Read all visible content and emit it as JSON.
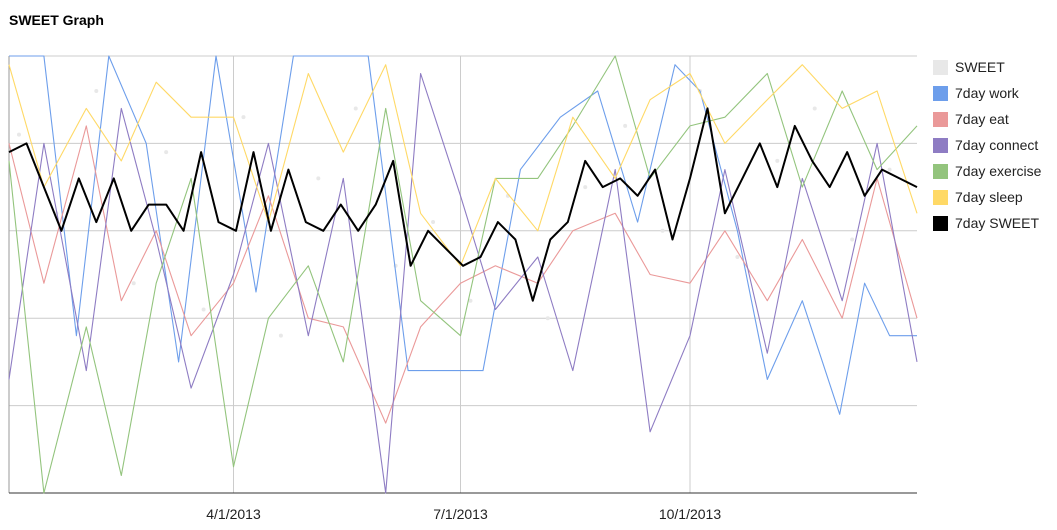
{
  "title": "SWEET Graph",
  "chart_data": {
    "type": "line",
    "title": "SWEET Graph",
    "xlabel": "",
    "ylabel": "",
    "x_range": [
      "2013-01-01",
      "2013-12-31"
    ],
    "x_ticks": [
      "4/1/2013",
      "7/1/2013",
      "10/1/2013"
    ],
    "y_range": [
      0,
      5
    ],
    "grid": true,
    "legend_position": "right",
    "series": [
      {
        "name": "SWEET",
        "color": "#e8e8e8",
        "style": "points",
        "points": [
          [
            "2013-01-05",
            4.1
          ],
          [
            "2013-01-20",
            3.2
          ],
          [
            "2013-02-05",
            4.6
          ],
          [
            "2013-02-20",
            2.4
          ],
          [
            "2013-03-05",
            3.9
          ],
          [
            "2013-03-20",
            2.1
          ],
          [
            "2013-04-05",
            4.3
          ],
          [
            "2013-04-20",
            1.8
          ],
          [
            "2013-05-05",
            3.6
          ],
          [
            "2013-05-20",
            4.4
          ],
          [
            "2013-06-05",
            2.6
          ],
          [
            "2013-06-20",
            3.1
          ],
          [
            "2013-07-05",
            2.2
          ],
          [
            "2013-07-20",
            3.4
          ],
          [
            "2013-08-05",
            2.0
          ],
          [
            "2013-08-20",
            3.5
          ],
          [
            "2013-09-05",
            4.2
          ],
          [
            "2013-09-20",
            3.0
          ],
          [
            "2013-10-05",
            4.6
          ],
          [
            "2013-10-20",
            2.7
          ],
          [
            "2013-11-05",
            3.8
          ],
          [
            "2013-11-20",
            4.4
          ],
          [
            "2013-12-05",
            2.9
          ],
          [
            "2013-12-20",
            3.7
          ]
        ]
      },
      {
        "name": "7day work",
        "color": "#6d9eeb",
        "points": [
          [
            "2013-01-01",
            5.0
          ],
          [
            "2013-01-15",
            5.0
          ],
          [
            "2013-01-28",
            1.8
          ],
          [
            "2013-02-10",
            5.0
          ],
          [
            "2013-02-25",
            4.0
          ],
          [
            "2013-03-10",
            1.5
          ],
          [
            "2013-03-25",
            5.0
          ],
          [
            "2013-04-10",
            2.3
          ],
          [
            "2013-04-25",
            5.0
          ],
          [
            "2013-05-10",
            5.0
          ],
          [
            "2013-05-25",
            5.0
          ],
          [
            "2013-06-10",
            1.4
          ],
          [
            "2013-06-25",
            1.4
          ],
          [
            "2013-07-10",
            1.4
          ],
          [
            "2013-07-25",
            3.7
          ],
          [
            "2013-08-10",
            4.3
          ],
          [
            "2013-08-25",
            4.6
          ],
          [
            "2013-09-10",
            3.1
          ],
          [
            "2013-09-25",
            4.9
          ],
          [
            "2013-10-05",
            4.6
          ],
          [
            "2013-10-20",
            3.0
          ],
          [
            "2013-11-01",
            1.3
          ],
          [
            "2013-11-15",
            2.2
          ],
          [
            "2013-11-30",
            0.9
          ],
          [
            "2013-12-10",
            2.4
          ],
          [
            "2013-12-20",
            1.8
          ],
          [
            "2013-12-31",
            1.8
          ]
        ]
      },
      {
        "name": "7day eat",
        "color": "#ea9999",
        "points": [
          [
            "2013-01-01",
            4.0
          ],
          [
            "2013-01-15",
            2.4
          ],
          [
            "2013-02-01",
            4.2
          ],
          [
            "2013-02-15",
            2.2
          ],
          [
            "2013-03-01",
            3.0
          ],
          [
            "2013-03-15",
            1.8
          ],
          [
            "2013-04-01",
            2.4
          ],
          [
            "2013-04-15",
            3.4
          ],
          [
            "2013-05-01",
            2.0
          ],
          [
            "2013-05-15",
            1.9
          ],
          [
            "2013-06-01",
            0.8
          ],
          [
            "2013-06-15",
            1.9
          ],
          [
            "2013-07-01",
            2.4
          ],
          [
            "2013-07-15",
            2.6
          ],
          [
            "2013-08-01",
            2.4
          ],
          [
            "2013-08-15",
            3.0
          ],
          [
            "2013-09-01",
            3.2
          ],
          [
            "2013-09-15",
            2.5
          ],
          [
            "2013-10-01",
            2.4
          ],
          [
            "2013-10-15",
            3.0
          ],
          [
            "2013-11-01",
            2.2
          ],
          [
            "2013-11-15",
            2.9
          ],
          [
            "2013-12-01",
            2.0
          ],
          [
            "2013-12-15",
            3.6
          ],
          [
            "2013-12-31",
            2.0
          ]
        ]
      },
      {
        "name": "7day connect",
        "color": "#8e7cc3",
        "points": [
          [
            "2013-01-01",
            1.3
          ],
          [
            "2013-01-15",
            4.0
          ],
          [
            "2013-02-01",
            1.4
          ],
          [
            "2013-02-15",
            4.4
          ],
          [
            "2013-03-01",
            2.9
          ],
          [
            "2013-03-15",
            1.2
          ],
          [
            "2013-04-01",
            2.5
          ],
          [
            "2013-04-15",
            4.0
          ],
          [
            "2013-05-01",
            1.8
          ],
          [
            "2013-05-15",
            3.6
          ],
          [
            "2013-06-01",
            0.0
          ],
          [
            "2013-06-15",
            4.8
          ],
          [
            "2013-07-01",
            3.4
          ],
          [
            "2013-07-15",
            2.1
          ],
          [
            "2013-08-01",
            2.7
          ],
          [
            "2013-08-15",
            1.4
          ],
          [
            "2013-09-01",
            3.7
          ],
          [
            "2013-09-15",
            0.7
          ],
          [
            "2013-10-01",
            1.8
          ],
          [
            "2013-10-15",
            3.7
          ],
          [
            "2013-11-01",
            1.6
          ],
          [
            "2013-11-15",
            3.6
          ],
          [
            "2013-12-01",
            2.2
          ],
          [
            "2013-12-15",
            4.0
          ],
          [
            "2013-12-31",
            1.5
          ]
        ]
      },
      {
        "name": "7day exercise",
        "color": "#93c47d",
        "points": [
          [
            "2013-01-01",
            3.8
          ],
          [
            "2013-01-15",
            0.0
          ],
          [
            "2013-02-01",
            1.9
          ],
          [
            "2013-02-15",
            0.2
          ],
          [
            "2013-03-01",
            2.4
          ],
          [
            "2013-03-15",
            3.6
          ],
          [
            "2013-04-01",
            0.3
          ],
          [
            "2013-04-15",
            2.0
          ],
          [
            "2013-05-01",
            2.6
          ],
          [
            "2013-05-15",
            1.5
          ],
          [
            "2013-06-01",
            4.4
          ],
          [
            "2013-06-15",
            2.2
          ],
          [
            "2013-07-01",
            1.8
          ],
          [
            "2013-07-15",
            3.6
          ],
          [
            "2013-08-01",
            3.6
          ],
          [
            "2013-08-15",
            4.2
          ],
          [
            "2013-09-01",
            5.0
          ],
          [
            "2013-09-15",
            3.6
          ],
          [
            "2013-10-01",
            4.2
          ],
          [
            "2013-10-15",
            4.3
          ],
          [
            "2013-11-01",
            4.8
          ],
          [
            "2013-11-15",
            3.5
          ],
          [
            "2013-12-01",
            4.6
          ],
          [
            "2013-12-15",
            3.7
          ],
          [
            "2013-12-31",
            4.2
          ]
        ]
      },
      {
        "name": "7day sleep",
        "color": "#ffd966",
        "points": [
          [
            "2013-01-01",
            4.9
          ],
          [
            "2013-01-15",
            3.5
          ],
          [
            "2013-02-01",
            4.4
          ],
          [
            "2013-02-15",
            3.8
          ],
          [
            "2013-03-01",
            4.7
          ],
          [
            "2013-03-15",
            4.3
          ],
          [
            "2013-04-01",
            4.3
          ],
          [
            "2013-04-15",
            3.1
          ],
          [
            "2013-05-01",
            4.8
          ],
          [
            "2013-05-15",
            3.9
          ],
          [
            "2013-06-01",
            4.9
          ],
          [
            "2013-06-15",
            3.2
          ],
          [
            "2013-07-01",
            2.6
          ],
          [
            "2013-07-15",
            3.6
          ],
          [
            "2013-08-01",
            3.0
          ],
          [
            "2013-08-15",
            4.3
          ],
          [
            "2013-09-01",
            3.6
          ],
          [
            "2013-09-15",
            4.5
          ],
          [
            "2013-10-01",
            4.8
          ],
          [
            "2013-10-15",
            4.0
          ],
          [
            "2013-11-01",
            4.5
          ],
          [
            "2013-11-15",
            4.9
          ],
          [
            "2013-12-01",
            4.4
          ],
          [
            "2013-12-15",
            4.6
          ],
          [
            "2013-12-31",
            3.2
          ]
        ]
      },
      {
        "name": "7day SWEET",
        "color": "#000000",
        "points": [
          [
            "2013-01-01",
            3.9
          ],
          [
            "2013-01-08",
            4.0
          ],
          [
            "2013-01-15",
            3.5
          ],
          [
            "2013-01-22",
            3.0
          ],
          [
            "2013-01-29",
            3.6
          ],
          [
            "2013-02-05",
            3.1
          ],
          [
            "2013-02-12",
            3.6
          ],
          [
            "2013-02-19",
            3.0
          ],
          [
            "2013-02-26",
            3.3
          ],
          [
            "2013-03-05",
            3.3
          ],
          [
            "2013-03-12",
            3.0
          ],
          [
            "2013-03-19",
            3.9
          ],
          [
            "2013-03-26",
            3.1
          ],
          [
            "2013-04-02",
            3.0
          ],
          [
            "2013-04-09",
            3.9
          ],
          [
            "2013-04-16",
            3.0
          ],
          [
            "2013-04-23",
            3.7
          ],
          [
            "2013-04-30",
            3.1
          ],
          [
            "2013-05-07",
            3.0
          ],
          [
            "2013-05-14",
            3.3
          ],
          [
            "2013-05-21",
            3.0
          ],
          [
            "2013-05-28",
            3.3
          ],
          [
            "2013-06-04",
            3.8
          ],
          [
            "2013-06-11",
            2.6
          ],
          [
            "2013-06-18",
            3.0
          ],
          [
            "2013-06-25",
            2.8
          ],
          [
            "2013-07-02",
            2.6
          ],
          [
            "2013-07-09",
            2.7
          ],
          [
            "2013-07-16",
            3.1
          ],
          [
            "2013-07-23",
            2.9
          ],
          [
            "2013-07-30",
            2.2
          ],
          [
            "2013-08-06",
            2.9
          ],
          [
            "2013-08-13",
            3.1
          ],
          [
            "2013-08-20",
            3.8
          ],
          [
            "2013-08-27",
            3.5
          ],
          [
            "2013-09-03",
            3.6
          ],
          [
            "2013-09-10",
            3.4
          ],
          [
            "2013-09-17",
            3.7
          ],
          [
            "2013-09-24",
            2.9
          ],
          [
            "2013-10-01",
            3.6
          ],
          [
            "2013-10-08",
            4.4
          ],
          [
            "2013-10-15",
            3.2
          ],
          [
            "2013-10-22",
            3.6
          ],
          [
            "2013-10-29",
            4.0
          ],
          [
            "2013-11-05",
            3.5
          ],
          [
            "2013-11-12",
            4.2
          ],
          [
            "2013-11-19",
            3.8
          ],
          [
            "2013-11-26",
            3.5
          ],
          [
            "2013-12-03",
            3.9
          ],
          [
            "2013-12-10",
            3.4
          ],
          [
            "2013-12-17",
            3.7
          ],
          [
            "2013-12-24",
            3.6
          ],
          [
            "2013-12-31",
            3.5
          ]
        ]
      }
    ]
  }
}
